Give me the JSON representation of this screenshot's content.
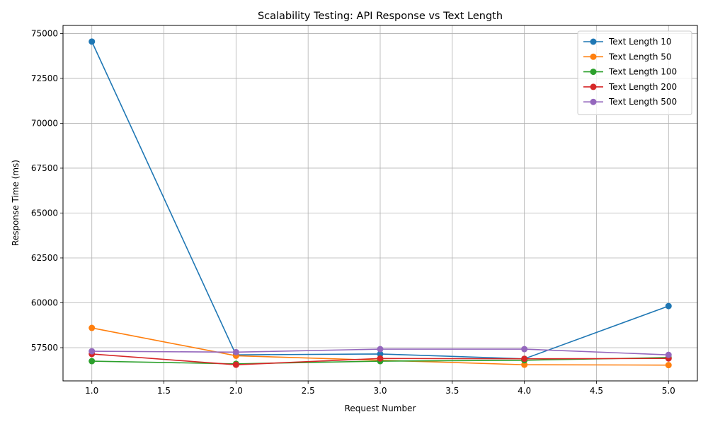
{
  "chart_data": {
    "type": "line",
    "title": "Scalability Testing: API Response vs Text Length",
    "xlabel": "Request Number",
    "ylabel": "Response Time (ms)",
    "x": [
      1,
      2,
      3,
      4,
      5
    ],
    "xlim": [
      0.8,
      5.2
    ],
    "ylim": [
      55650,
      75450
    ],
    "xticks": [
      1.0,
      1.5,
      2.0,
      2.5,
      3.0,
      3.5,
      4.0,
      4.5,
      5.0
    ],
    "xtick_labels": [
      "1.0",
      "1.5",
      "2.0",
      "2.5",
      "3.0",
      "3.5",
      "4.0",
      "4.5",
      "5.0"
    ],
    "yticks": [
      57500,
      60000,
      62500,
      65000,
      67500,
      70000,
      72500,
      75000
    ],
    "ytick_labels": [
      "57500",
      "60000",
      "62500",
      "65000",
      "67500",
      "70000",
      "72500",
      "75000"
    ],
    "grid": true,
    "legend_position": "top-right",
    "series": [
      {
        "name": "Text Length 10",
        "color": "#1f77b4",
        "values": [
          74550,
          57100,
          57150,
          56880,
          59820
        ]
      },
      {
        "name": "Text Length 50",
        "color": "#ff7f0e",
        "values": [
          58600,
          57050,
          56800,
          56550,
          56530
        ]
      },
      {
        "name": "Text Length 100",
        "color": "#2ca02c",
        "values": [
          56750,
          56600,
          56750,
          56800,
          56950
        ]
      },
      {
        "name": "Text Length 200",
        "color": "#d62728",
        "values": [
          57150,
          56550,
          56900,
          56880,
          56900
        ]
      },
      {
        "name": "Text Length 500",
        "color": "#9467bd",
        "values": [
          57300,
          57250,
          57420,
          57420,
          57100
        ]
      }
    ]
  }
}
